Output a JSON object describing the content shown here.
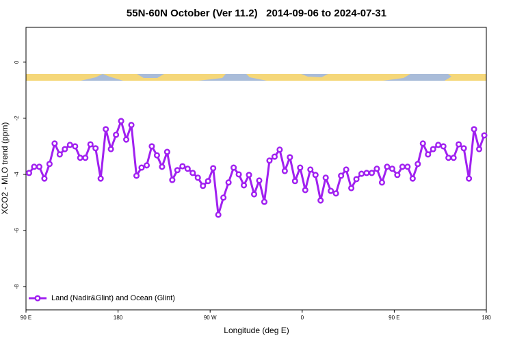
{
  "chart_data": {
    "type": "line",
    "title": "55N-60N October (Ver 11.2)   2014-09-06 to 2024-07-31",
    "xlabel": "Longitude (deg E)",
    "ylabel": "XCO2 - MLO trend (ppm)",
    "xlim": [
      90,
      540
    ],
    "ylim": [
      -8.83,
      1.24
    ],
    "xticks": [
      {
        "value": 90,
        "label": "90 E"
      },
      180,
      {
        "value": 270,
        "label": "90 W"
      },
      {
        "value": 360,
        "label": "0"
      },
      {
        "value": 450,
        "label": "90 E"
      },
      {
        "value": 540,
        "label": "180"
      }
    ],
    "yticks": [
      0,
      -2,
      -4,
      -6,
      -8
    ],
    "legend": "bottomleft",
    "x": [
      93,
      98,
      103,
      108,
      113,
      118,
      123,
      128,
      133,
      138,
      143,
      148,
      153,
      158,
      163,
      168,
      173,
      178,
      183,
      188,
      193,
      198,
      203,
      208,
      213,
      218,
      223,
      228,
      233,
      238,
      243,
      248,
      253,
      258,
      263,
      268,
      273,
      278,
      283,
      288,
      293,
      298,
      303,
      308,
      313,
      318,
      323,
      328,
      333,
      338,
      343,
      348,
      353,
      358,
      363,
      368,
      373,
      378,
      383,
      388,
      393,
      398,
      403,
      408,
      413,
      418,
      423,
      428,
      433,
      438,
      443,
      448,
      453,
      458,
      463,
      468,
      473,
      478,
      483,
      488,
      493,
      498,
      503,
      508,
      513,
      518,
      523,
      528,
      533,
      538
    ],
    "series": [
      {
        "name": "Land (Nadir&Glint) and Ocean (Glint)",
        "color": "#a020f0",
        "values": [
          -3.95,
          -3.73,
          -3.73,
          -4.15,
          -3.63,
          -2.9,
          -3.29,
          -3.1,
          -2.95,
          -3.0,
          -3.41,
          -3.41,
          -2.93,
          -3.07,
          -4.15,
          -2.39,
          -3.1,
          -2.59,
          -2.1,
          -2.76,
          -2.24,
          -4.05,
          -3.76,
          -3.68,
          -3.0,
          -3.32,
          -3.73,
          -3.2,
          -4.2,
          -3.85,
          -3.71,
          -3.8,
          -3.95,
          -4.12,
          -4.41,
          -4.24,
          -3.78,
          -5.44,
          -4.83,
          -4.29,
          -3.76,
          -4.0,
          -4.39,
          -4.02,
          -4.71,
          -4.22,
          -4.98,
          -3.51,
          -3.37,
          -3.12,
          -3.88,
          -3.39,
          -4.24,
          -3.76,
          -4.56,
          -3.83,
          -4.02,
          -4.93,
          -4.12,
          -4.59,
          -4.68,
          -4.05,
          -3.83,
          -4.49,
          -4.17,
          -3.98,
          -3.95,
          -3.95,
          -3.8,
          -4.29,
          -3.73,
          -3.8,
          -4.02,
          -3.73,
          -3.73,
          -4.15,
          -3.63,
          -2.9,
          -3.29,
          -3.1,
          -2.95,
          -3.0,
          -3.41,
          -3.41,
          -2.93,
          -3.07,
          -4.15,
          -2.39,
          -3.1,
          -2.61
        ]
      }
    ]
  }
}
